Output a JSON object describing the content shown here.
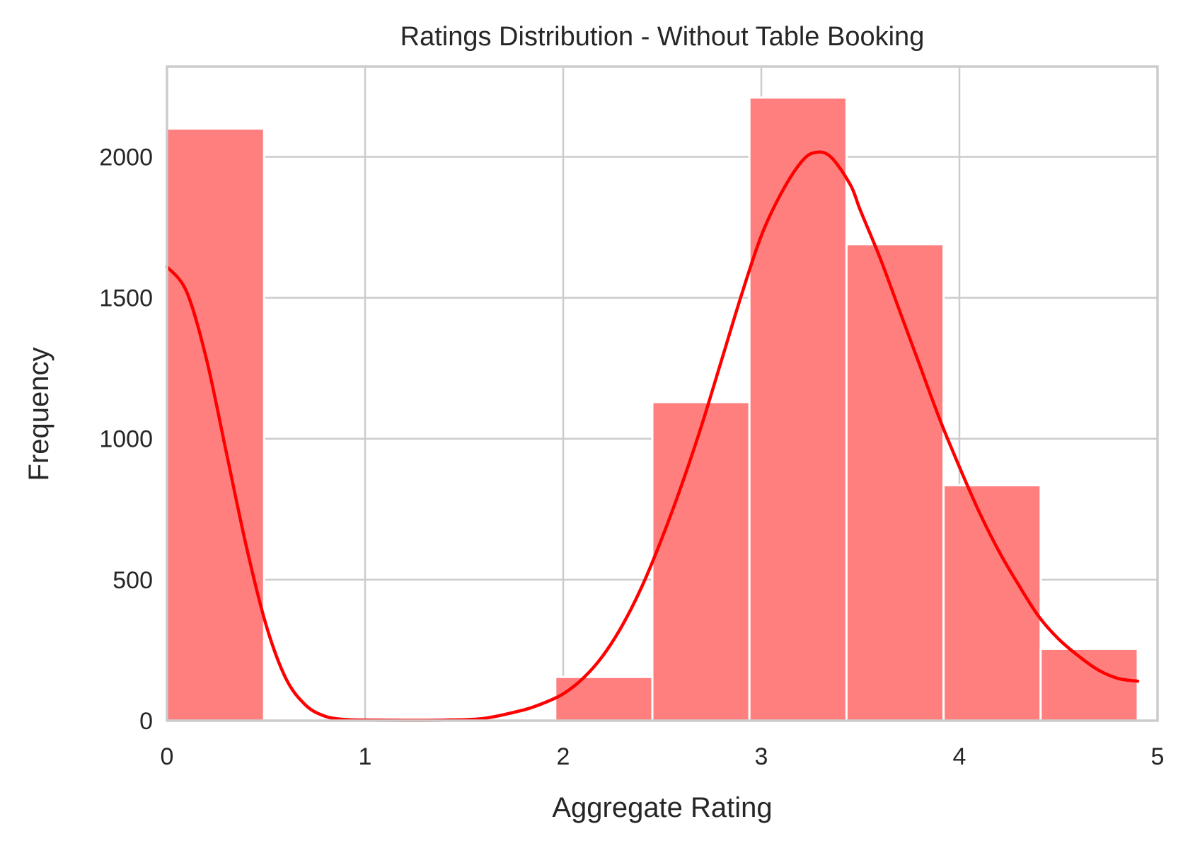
{
  "chart_data": {
    "type": "bar",
    "title": "Ratings Distribution - Without Table Booking",
    "xlabel": "Aggregate Rating",
    "ylabel": "Frequency",
    "xlim": [
      0,
      5
    ],
    "ylim": [
      0,
      2320
    ],
    "xticks": [
      "0",
      "1",
      "2",
      "3",
      "4",
      "5"
    ],
    "yticks": [
      "0",
      "500",
      "1000",
      "1500",
      "2000"
    ],
    "grid": true,
    "legend": "none",
    "bar_color": "#ff7f7f",
    "kde_color": "#ff0000",
    "bins": [
      {
        "x0": 0.0,
        "x1": 0.49,
        "count": 2100
      },
      {
        "x0": 1.96,
        "x1": 2.45,
        "count": 155
      },
      {
        "x0": 2.45,
        "x1": 2.94,
        "count": 1130
      },
      {
        "x0": 2.94,
        "x1": 3.43,
        "count": 2210
      },
      {
        "x0": 3.43,
        "x1": 3.92,
        "count": 1690
      },
      {
        "x0": 3.92,
        "x1": 4.41,
        "count": 835
      },
      {
        "x0": 4.41,
        "x1": 4.9,
        "count": 255
      }
    ],
    "kde": {
      "x": [
        0.0,
        0.1,
        0.2,
        0.3,
        0.4,
        0.5,
        0.6,
        0.7,
        0.8,
        0.9,
        1.0,
        1.2,
        1.4,
        1.6,
        1.8,
        1.9,
        2.0,
        2.1,
        2.2,
        2.3,
        2.4,
        2.5,
        2.6,
        2.7,
        2.8,
        2.9,
        3.0,
        3.1,
        3.2,
        3.27,
        3.35,
        3.45,
        3.5,
        3.6,
        3.7,
        3.8,
        3.9,
        4.0,
        4.1,
        4.2,
        4.3,
        4.4,
        4.5,
        4.6,
        4.7,
        4.8,
        4.9
      ],
      "y": [
        1610,
        1520,
        1280,
        950,
        620,
        340,
        150,
        55,
        15,
        4,
        2,
        1,
        2,
        8,
        38,
        62,
        95,
        150,
        230,
        340,
        480,
        650,
        840,
        1050,
        1280,
        1510,
        1720,
        1870,
        1980,
        2015,
        2000,
        1900,
        1810,
        1640,
        1450,
        1260,
        1070,
        900,
        740,
        600,
        480,
        370,
        290,
        230,
        180,
        150,
        140
      ]
    }
  }
}
